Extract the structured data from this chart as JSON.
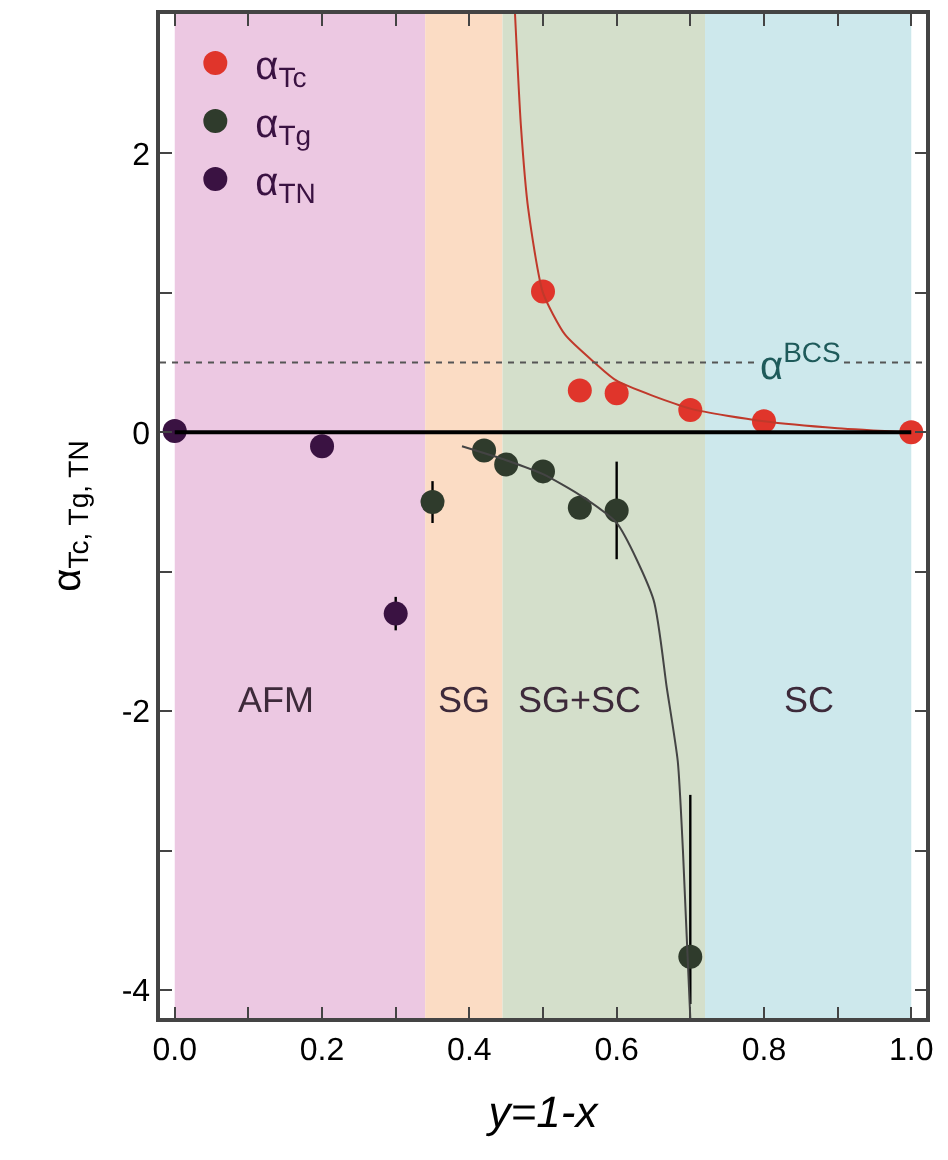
{
  "chart_data": {
    "type": "scatter",
    "xlabel": "y=1-x",
    "ylabel": "α$_{Tc, Tg, TN}$",
    "xlim": [
      -0.02,
      1.02
    ],
    "ylim": [
      -4.2,
      3.0
    ],
    "xticks": [
      {
        "value": 0,
        "label": "0.0"
      },
      {
        "value": 0.1,
        "label": null
      },
      0.2,
      {
        "value": 0.3,
        "label": null
      },
      0.4,
      {
        "value": 0.5,
        "label": null
      },
      0.6,
      {
        "value": 0.7,
        "label": null
      },
      0.8,
      {
        "value": 0.9,
        "label": null
      },
      {
        "value": 1,
        "label": "1.0"
      }
    ],
    "yticks": [
      -4,
      {
        "value": -3,
        "label": null
      },
      -2,
      {
        "value": -1,
        "label": null
      },
      0,
      {
        "value": 1,
        "label": null
      },
      2
    ],
    "grid": false,
    "legend": "top left",
    "marker": "circle",
    "bands": [
      {
        "axis": "x",
        "from": 0.0,
        "to": 0.34,
        "label": "AFM",
        "color": "#ecc8e2"
      },
      {
        "axis": "x",
        "from": 0.34,
        "to": 0.445,
        "label": "SG",
        "color": "#fbdcc4"
      },
      {
        "axis": "x",
        "from": 0.445,
        "to": 0.72,
        "label": "SG+SC",
        "color": "#d4dfcb"
      },
      {
        "axis": "x",
        "from": 0.72,
        "to": 1.0,
        "label": "SC",
        "color": "#cde8ec"
      }
    ],
    "ref_lines": [
      {
        "axis": "y",
        "value": 0.5,
        "label": "α$^{BCS}$",
        "color": "#555555",
        "line_style": "dotted"
      },
      {
        "axis": "y",
        "value": 0,
        "label": null,
        "color": "#000000",
        "line_style": "solid"
      }
    ],
    "series": [
      {
        "name": "α$_{Tc}$",
        "color": "#e0352b",
        "x": [
          0.5,
          0.55,
          0.6,
          0.7,
          0.8,
          1.0
        ],
        "values": [
          1.01,
          0.3,
          0.28,
          0.16,
          0.08,
          0.0
        ]
      },
      {
        "name": "α$_{Tg}$",
        "color": "#2f3b2c",
        "x": [
          0.35,
          0.42,
          0.45,
          0.5,
          0.55,
          0.6,
          0.7
        ],
        "values": [
          -0.5,
          -0.13,
          -0.23,
          -0.28,
          -0.54,
          -0.56,
          -3.76
        ],
        "errors": [
          0.15,
          null,
          null,
          null,
          null,
          0.35,
          [
            -4.1,
            -2.6
          ]
        ]
      },
      {
        "name": "α$_{TN}$",
        "color": "#3a1242",
        "x": [
          0.0,
          0.2,
          0.3
        ],
        "values": [
          0.01,
          -0.1,
          -1.3
        ],
        "errors": [
          null,
          null,
          0.12
        ]
      },
      {
        "type": "line",
        "color": "#c0392b",
        "marker": "none",
        "x": [
          0.462,
          0.47,
          0.48,
          0.5,
          0.53,
          0.57,
          0.6,
          0.7,
          0.8,
          0.9,
          1.0
        ],
        "values": [
          3.0,
          2.2,
          1.6,
          1.0,
          0.7,
          0.5,
          0.37,
          0.17,
          0.08,
          0.03,
          0.0
        ]
      },
      {
        "type": "line",
        "color": "#444444",
        "marker": "none",
        "x": [
          0.39,
          0.45,
          0.5,
          0.55,
          0.6,
          0.65,
          0.668,
          0.683,
          0.69,
          0.7
        ],
        "values": [
          -0.1,
          -0.2,
          -0.3,
          -0.45,
          -0.65,
          -1.2,
          -1.83,
          -2.36,
          -3.0,
          -4.2
        ]
      }
    ]
  }
}
